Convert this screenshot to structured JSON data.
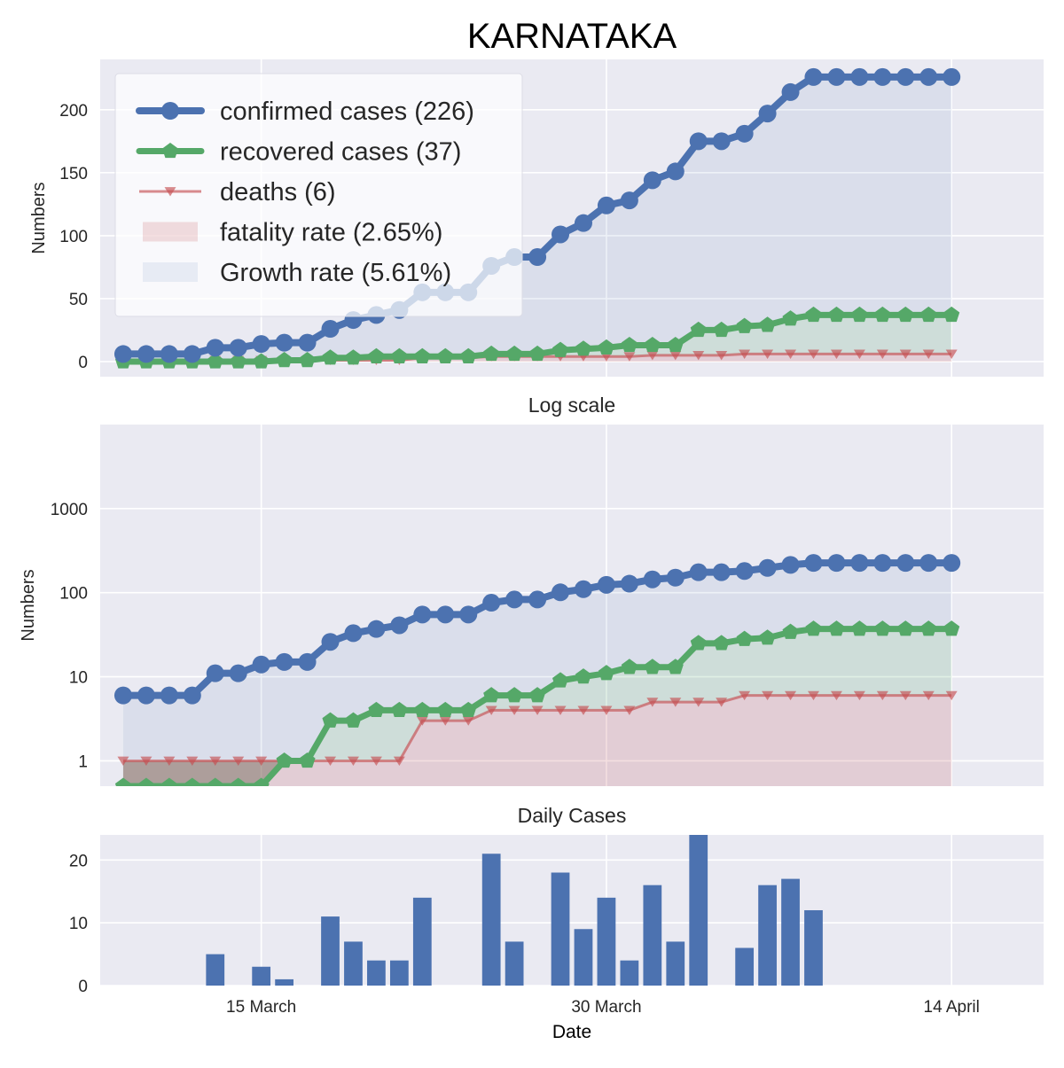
{
  "page": {
    "title": "KARNATAKA",
    "x_label": "Date",
    "x_ticks": [
      "15 March",
      "30 March",
      "14 April"
    ]
  },
  "colors": {
    "background": "#EAEAF2",
    "grid": "#FFFFFF",
    "confirmed": "#4C72B0",
    "recovered": "#55A868",
    "deaths": "#C44E52",
    "text": "#262626"
  },
  "chart_data": [
    {
      "type": "line",
      "title": "",
      "ylabel": "Numbers",
      "scale": "linear",
      "ylim": [
        -12,
        240
      ],
      "yticks": [
        0,
        50,
        100,
        150,
        200
      ],
      "ytick_labels": [
        "0",
        "50",
        "100",
        "150",
        "200"
      ],
      "x_range": [
        "2020-03-08",
        "2020-04-18"
      ],
      "x_tick_dates": [
        "2020-03-15",
        "2020-03-30",
        "2020-04-14"
      ],
      "grid": true,
      "legend_position": "top-left",
      "legend": [
        {
          "label": "confirmed cases (226)",
          "kind": "line-circle",
          "series": "confirmed"
        },
        {
          "label": "recovered cases (37)",
          "kind": "line-pentagon",
          "series": "recovered"
        },
        {
          "label": "deaths (6)",
          "kind": "line-triangle",
          "series": "deaths"
        },
        {
          "label": "fatality rate (2.65%)",
          "kind": "patch",
          "series": "deaths"
        },
        {
          "label": "Growth rate (5.61%)",
          "kind": "patch",
          "series": "confirmed"
        }
      ]
    },
    {
      "type": "line",
      "title": "Log scale",
      "ylabel": "Numbers",
      "scale": "log",
      "ylim": [
        0.5,
        10000
      ],
      "yticks": [
        1,
        10,
        100,
        1000
      ],
      "ytick_labels": [
        "1",
        "10",
        "100",
        "1000"
      ],
      "x_range": [
        "2020-03-08",
        "2020-04-18"
      ],
      "x_tick_dates": [
        "2020-03-15",
        "2020-03-30",
        "2020-04-14"
      ],
      "grid": true
    },
    {
      "type": "bar",
      "title": "Daily Cases",
      "ylabel": "",
      "scale": "linear",
      "ylim": [
        0,
        24
      ],
      "yticks": [
        0,
        10,
        20
      ],
      "ytick_labels": [
        "0",
        "10",
        "20"
      ],
      "x_range": [
        "2020-03-08",
        "2020-04-18"
      ],
      "x_tick_dates": [
        "2020-03-15",
        "2020-03-30",
        "2020-04-14"
      ],
      "grid": true
    }
  ],
  "series": {
    "dates": [
      "2020-03-09",
      "2020-03-10",
      "2020-03-11",
      "2020-03-12",
      "2020-03-13",
      "2020-03-14",
      "2020-03-15",
      "2020-03-16",
      "2020-03-17",
      "2020-03-18",
      "2020-03-19",
      "2020-03-20",
      "2020-03-21",
      "2020-03-22",
      "2020-03-23",
      "2020-03-24",
      "2020-03-25",
      "2020-03-26",
      "2020-03-27",
      "2020-03-28",
      "2020-03-29",
      "2020-03-30",
      "2020-03-31",
      "2020-04-01",
      "2020-04-02",
      "2020-04-03",
      "2020-04-04",
      "2020-04-05",
      "2020-04-06",
      "2020-04-07",
      "2020-04-08",
      "2020-04-09",
      "2020-04-10",
      "2020-04-11",
      "2020-04-12",
      "2020-04-13",
      "2020-04-14"
    ],
    "confirmed": {
      "name": "confirmed cases (226)",
      "x": [
        "2020-03-09",
        "2020-03-10",
        "2020-03-11",
        "2020-03-12",
        "2020-03-13",
        "2020-03-14",
        "2020-03-15",
        "2020-03-16",
        "2020-03-17",
        "2020-03-18",
        "2020-03-19",
        "2020-03-20",
        "2020-03-21",
        "2020-03-22",
        "2020-03-23",
        "2020-03-24",
        "2020-03-25",
        "2020-03-26",
        "2020-03-27",
        "2020-03-28",
        "2020-03-29",
        "2020-03-30",
        "2020-03-31",
        "2020-04-01",
        "2020-04-02",
        "2020-04-03",
        "2020-04-04",
        "2020-04-05",
        "2020-04-06",
        "2020-04-07",
        "2020-04-08",
        "2020-04-09",
        "2020-04-10",
        "2020-04-11",
        "2020-04-12",
        "2020-04-13",
        "2020-04-14"
      ],
      "values": [
        6,
        6,
        6,
        6,
        11,
        11,
        14,
        15,
        15,
        26,
        33,
        37,
        41,
        55,
        55,
        55,
        76,
        83,
        83,
        101,
        110,
        124,
        128,
        144,
        151,
        175,
        175,
        181,
        197,
        214,
        226,
        226,
        226,
        226,
        226,
        226,
        226
      ]
    },
    "recovered": {
      "name": "recovered cases (37)",
      "x": [
        "2020-03-09",
        "2020-03-10",
        "2020-03-11",
        "2020-03-12",
        "2020-03-13",
        "2020-03-14",
        "2020-03-15",
        "2020-03-16",
        "2020-03-17",
        "2020-03-18",
        "2020-03-19",
        "2020-03-20",
        "2020-03-21",
        "2020-03-22",
        "2020-03-23",
        "2020-03-24",
        "2020-03-25",
        "2020-03-26",
        "2020-03-27",
        "2020-03-28",
        "2020-03-29",
        "2020-03-30",
        "2020-03-31",
        "2020-04-01",
        "2020-04-02",
        "2020-04-03",
        "2020-04-04",
        "2020-04-05",
        "2020-04-06",
        "2020-04-07",
        "2020-04-08",
        "2020-04-09",
        "2020-04-10",
        "2020-04-11",
        "2020-04-12",
        "2020-04-13",
        "2020-04-14"
      ],
      "values": [
        0,
        0,
        0,
        0,
        0,
        0,
        0,
        1,
        1,
        3,
        3,
        4,
        4,
        4,
        4,
        4,
        6,
        6,
        6,
        9,
        10,
        11,
        13,
        13,
        13,
        25,
        25,
        28,
        29,
        34,
        37,
        37,
        37,
        37,
        37,
        37,
        37
      ]
    },
    "deaths": {
      "name": "deaths (6)",
      "x": [
        "2020-03-09",
        "2020-03-10",
        "2020-03-11",
        "2020-03-12",
        "2020-03-13",
        "2020-03-14",
        "2020-03-15",
        "2020-03-16",
        "2020-03-17",
        "2020-03-18",
        "2020-03-19",
        "2020-03-20",
        "2020-03-21",
        "2020-03-22",
        "2020-03-23",
        "2020-03-24",
        "2020-03-25",
        "2020-03-26",
        "2020-03-27",
        "2020-03-28",
        "2020-03-29",
        "2020-03-30",
        "2020-03-31",
        "2020-04-01",
        "2020-04-02",
        "2020-04-03",
        "2020-04-04",
        "2020-04-05",
        "2020-04-06",
        "2020-04-07",
        "2020-04-08",
        "2020-04-09",
        "2020-04-10",
        "2020-04-11",
        "2020-04-12",
        "2020-04-13",
        "2020-04-14"
      ],
      "values": [
        1,
        1,
        1,
        1,
        1,
        1,
        1,
        1,
        1,
        1,
        1,
        1,
        1,
        3,
        3,
        3,
        4,
        4,
        4,
        4,
        4,
        4,
        4,
        5,
        5,
        5,
        5,
        6,
        6,
        6,
        6,
        6,
        6,
        6,
        6,
        6,
        6
      ]
    },
    "daily": {
      "x": [
        "2020-03-09",
        "2020-03-10",
        "2020-03-11",
        "2020-03-12",
        "2020-03-13",
        "2020-03-14",
        "2020-03-15",
        "2020-03-16",
        "2020-03-17",
        "2020-03-18",
        "2020-03-19",
        "2020-03-20",
        "2020-03-21",
        "2020-03-22",
        "2020-03-23",
        "2020-03-24",
        "2020-03-25",
        "2020-03-26",
        "2020-03-27",
        "2020-03-28",
        "2020-03-29",
        "2020-03-30",
        "2020-03-31",
        "2020-04-01",
        "2020-04-02",
        "2020-04-03",
        "2020-04-04",
        "2020-04-05",
        "2020-04-06",
        "2020-04-07",
        "2020-04-08",
        "2020-04-09",
        "2020-04-10",
        "2020-04-11",
        "2020-04-12",
        "2020-04-13",
        "2020-04-14"
      ],
      "values": [
        0,
        0,
        0,
        0,
        5,
        0,
        3,
        1,
        0,
        11,
        7,
        4,
        4,
        14,
        0,
        0,
        21,
        7,
        0,
        18,
        9,
        14,
        4,
        16,
        7,
        24,
        0,
        6,
        16,
        17,
        12,
        0,
        0,
        0,
        0,
        0,
        0
      ]
    }
  }
}
